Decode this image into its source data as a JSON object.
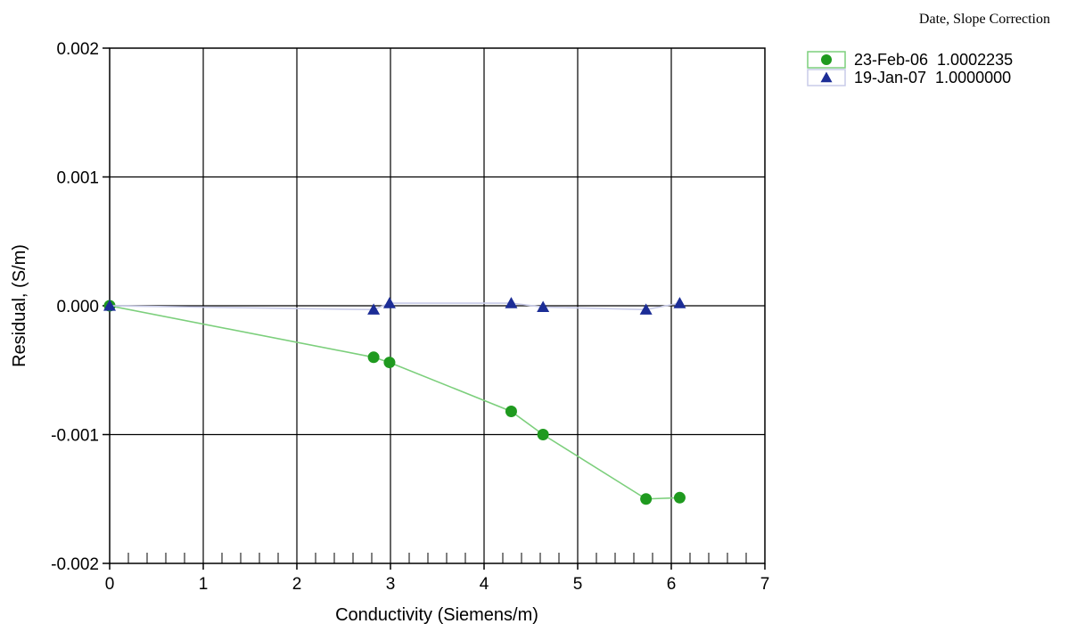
{
  "chart_data": {
    "type": "line",
    "xlabel": "Conductivity (Siemens/m)",
    "ylabel": "Residual, (S/m)",
    "xlim": [
      0,
      7
    ],
    "ylim": [
      -0.002,
      0.002
    ],
    "x_ticks": [
      "0",
      "1",
      "2",
      "3",
      "4",
      "5",
      "6",
      "7"
    ],
    "y_ticks": [
      "0.002",
      "0.001",
      "0.000",
      "-0.001",
      "-0.002"
    ],
    "grid": true,
    "legend_position": "top-right",
    "legend_title": "Date, Slope Correction",
    "series": [
      {
        "name": "23-Feb-06  1.0002235",
        "marker": "circle",
        "color": "#1f9a1f",
        "line_color": "#7ccf7c",
        "x": [
          0.0,
          2.82,
          2.99,
          4.29,
          4.63,
          5.73,
          6.09
        ],
        "y": [
          0.0,
          -0.0004,
          -0.00044,
          -0.00082,
          -0.001,
          -0.0015,
          -0.00149
        ]
      },
      {
        "name": "19-Jan-07  1.0000000",
        "marker": "triangle",
        "color": "#1c2d96",
        "line_color": "#c8cbe8",
        "x": [
          0.0,
          2.82,
          2.99,
          4.29,
          4.63,
          5.73,
          6.09
        ],
        "y": [
          0.0,
          -3e-05,
          2e-05,
          2e-05,
          -1e-05,
          -3e-05,
          2e-05
        ]
      }
    ]
  }
}
